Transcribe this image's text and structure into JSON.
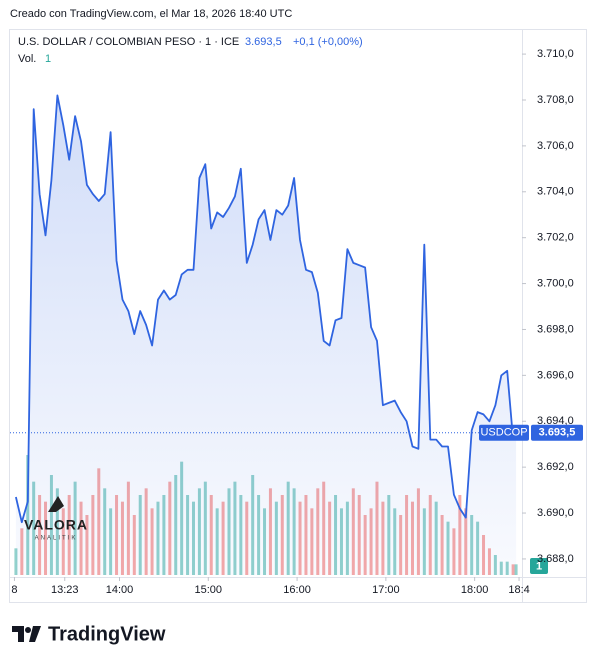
{
  "chart_data": {
    "type": "line",
    "credit": "Creado con TradingView.com, el Mar 18, 2026 18:40 UTC",
    "title": "U.S. DOLLAR / COLOMBIAN PESO · 1 · ICE",
    "last": {
      "value": 3693.5,
      "label": "3.693,5"
    },
    "change": "+0,1 (+0,00%)",
    "x": [
      770,
      774,
      778,
      782,
      786,
      790,
      794,
      798,
      802,
      806,
      810,
      814,
      818,
      822,
      826,
      830,
      834,
      838,
      842,
      846,
      850,
      854,
      858,
      862,
      866,
      870,
      874,
      878,
      882,
      886,
      890,
      894,
      898,
      902,
      906,
      910,
      914,
      918,
      922,
      926,
      930,
      934,
      938,
      942,
      946,
      950,
      954,
      958,
      962,
      966,
      970,
      974,
      978,
      982,
      986,
      990,
      994,
      998,
      1002,
      1006,
      1010,
      1014,
      1018,
      1022,
      1026,
      1030,
      1034,
      1038,
      1042,
      1046,
      1050,
      1054,
      1058,
      1062,
      1066,
      1070,
      1074,
      1078,
      1082,
      1086,
      1090,
      1094,
      1098,
      1102,
      1106,
      1108
    ],
    "series": [
      {
        "name": "USDCOP",
        "color": "#2f64e0",
        "values": [
          3690.7,
          3689.6,
          3690.5,
          3707.6,
          3703.9,
          3702.1,
          3704.5,
          3708.2,
          3706.9,
          3705.4,
          3707.3,
          3706.2,
          3704.3,
          3703.9,
          3703.6,
          3703.9,
          3706.6,
          3701.0,
          3699.3,
          3698.8,
          3697.8,
          3698.8,
          3698.2,
          3697.3,
          3699.3,
          3699.7,
          3699.3,
          3699.5,
          3700.4,
          3700.6,
          3700.6,
          3704.6,
          3705.2,
          3702.4,
          3703.1,
          3702.9,
          3703.3,
          3703.8,
          3705.0,
          3700.9,
          3701.7,
          3702.8,
          3703.2,
          3701.9,
          3703.2,
          3703.0,
          3703.4,
          3704.6,
          3701.9,
          3700.6,
          3700.5,
          3699.6,
          3697.5,
          3697.3,
          3698.4,
          3698.5,
          3701.5,
          3700.9,
          3700.8,
          3700.7,
          3698.1,
          3697.5,
          3694.7,
          3694.8,
          3694.9,
          3694.4,
          3694.0,
          3692.9,
          3692.8,
          3701.7,
          3693.2,
          3693.2,
          3692.9,
          3692.9,
          3690.8,
          3690.2,
          3689.8,
          3693.6,
          3694.4,
          3694.3,
          3694.0,
          3694.7,
          3696.0,
          3696.2,
          3693.2,
          3693.5
        ]
      }
    ],
    "volume": {
      "name": "Vol.",
      "last": 1,
      "up_color": "rgba(38,166,154,0.5)",
      "down_color": "rgba(239,83,80,0.5)",
      "values": [
        20,
        35,
        90,
        70,
        60,
        55,
        75,
        65,
        50,
        60,
        70,
        55,
        45,
        60,
        80,
        65,
        50,
        60,
        55,
        70,
        45,
        60,
        65,
        50,
        55,
        60,
        70,
        75,
        85,
        60,
        55,
        65,
        70,
        60,
        50,
        55,
        65,
        70,
        60,
        55,
        75,
        60,
        50,
        65,
        55,
        60,
        70,
        65,
        55,
        60,
        50,
        65,
        70,
        55,
        60,
        50,
        55,
        65,
        60,
        45,
        50,
        70,
        55,
        60,
        50,
        45,
        60,
        55,
        65,
        50,
        60,
        55,
        45,
        40,
        35,
        60,
        50,
        45,
        40,
        30,
        20,
        15,
        10,
        10,
        8,
        8
      ]
    },
    "badge": 1,
    "xlim": [
      766,
      1112
    ],
    "xticks": [
      {
        "value": 769,
        "label": "8"
      },
      {
        "value": 803,
        "label": "13:23"
      },
      {
        "value": 840,
        "label": "14:00"
      },
      {
        "value": 900,
        "label": "15:00"
      },
      {
        "value": 960,
        "label": "16:00"
      },
      {
        "value": 1020,
        "label": "17:00"
      },
      {
        "value": 1080,
        "label": "18:00"
      },
      {
        "value": 1110,
        "label": "18:4"
      }
    ],
    "ylim": [
      3687.3,
      3711.05
    ],
    "yticks": [
      {
        "value": 3688,
        "label": "3.688,0"
      },
      {
        "value": 3690,
        "label": "3.690,0"
      },
      {
        "value": 3692,
        "label": "3.692,0"
      },
      {
        "value": 3694,
        "label": "3.694,0"
      },
      {
        "value": 3696,
        "label": "3.696,0"
      },
      {
        "value": 3698,
        "label": "3.698,0"
      },
      {
        "value": 3700,
        "label": "3.700,0"
      },
      {
        "value": 3702,
        "label": "3.702,0"
      },
      {
        "value": 3704,
        "label": "3.704,0"
      },
      {
        "value": 3706,
        "label": "3.706,0"
      },
      {
        "value": 3708,
        "label": "3.708,0"
      },
      {
        "value": 3710,
        "label": "3.710,0"
      }
    ],
    "watermark": {
      "title": "VALORA",
      "subtitle": "ANALITIK"
    },
    "brand": "TradingView"
  }
}
